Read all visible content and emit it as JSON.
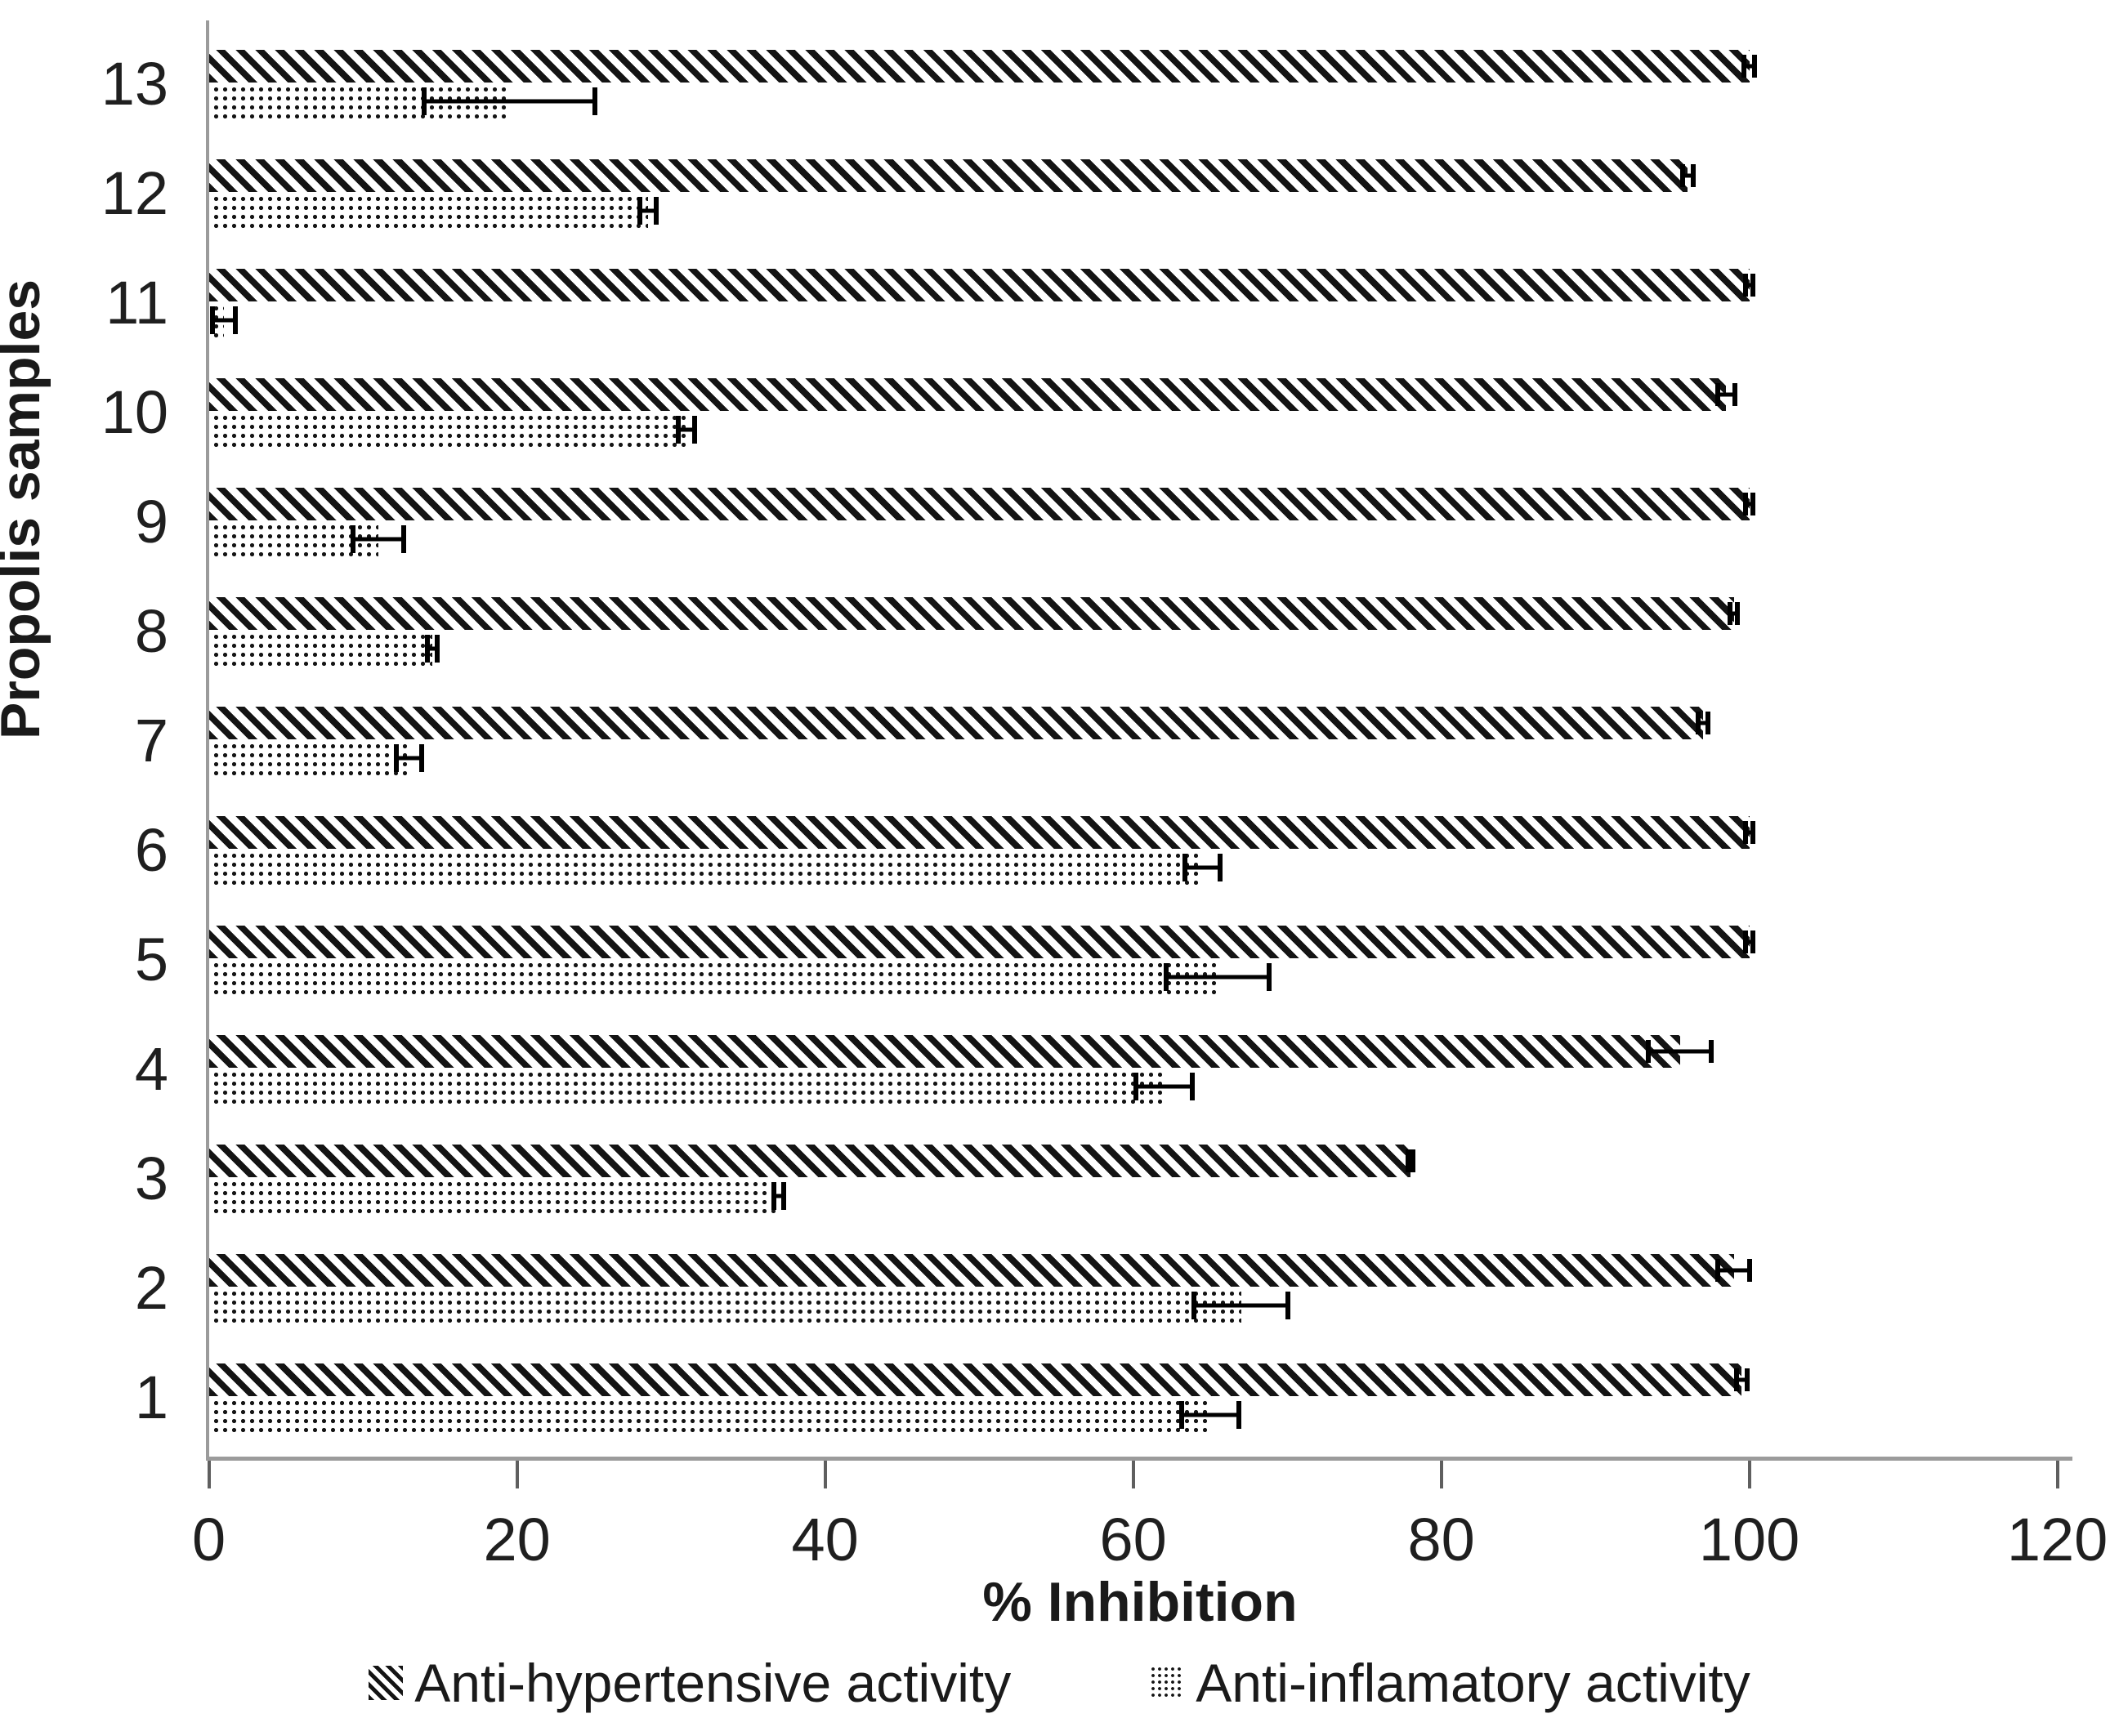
{
  "chart_data": {
    "type": "bar",
    "orientation": "horizontal",
    "title": "",
    "xlabel": "% Inhibition",
    "ylabel": "Propolis samples",
    "xlim": [
      0,
      120
    ],
    "x_ticks": [
      0,
      20,
      40,
      60,
      80,
      100,
      120
    ],
    "grid": false,
    "legend_position": "bottom-center",
    "bar_color": "#141414",
    "axis_color": "#9b9b9b",
    "series": [
      {
        "name": "Anti-hypertensive activity",
        "pattern": "diagonal-hatch"
      },
      {
        "name": "Anti-inflamatory activity",
        "pattern": "dots"
      }
    ],
    "rows": [
      {
        "sample": "13",
        "anti_hypertensive": {
          "value": 100,
          "error": 0.5
        },
        "anti_inflamatory": {
          "value": 19.5,
          "error": 5.7
        }
      },
      {
        "sample": "12",
        "anti_hypertensive": {
          "value": 96,
          "error": 0.5
        },
        "anti_inflamatory": {
          "value": 28.5,
          "error": 0.7
        }
      },
      {
        "sample": "11",
        "anti_hypertensive": {
          "value": 100,
          "error": 0.4
        },
        "anti_inflamatory": {
          "value": 1,
          "error": 0.9
        }
      },
      {
        "sample": "10",
        "anti_hypertensive": {
          "value": 98.5,
          "error": 0.7
        },
        "anti_inflamatory": {
          "value": 31,
          "error": 0.7
        }
      },
      {
        "sample": "9",
        "anti_hypertensive": {
          "value": 100,
          "error": 0.4
        },
        "anti_inflamatory": {
          "value": 11,
          "error": 1.8
        }
      },
      {
        "sample": "8",
        "anti_hypertensive": {
          "value": 99,
          "error": 0.4
        },
        "anti_inflamatory": {
          "value": 14.5,
          "error": 0.5
        }
      },
      {
        "sample": "7",
        "anti_hypertensive": {
          "value": 97,
          "error": 0.5
        },
        "anti_inflamatory": {
          "value": 13,
          "error": 1
        }
      },
      {
        "sample": "6",
        "anti_hypertensive": {
          "value": 100,
          "error": 0.4
        },
        "anti_inflamatory": {
          "value": 64.5,
          "error": 1.3
        }
      },
      {
        "sample": "5",
        "anti_hypertensive": {
          "value": 100,
          "error": 0.4
        },
        "anti_inflamatory": {
          "value": 65.5,
          "error": 3.5
        }
      },
      {
        "sample": "4",
        "anti_hypertensive": {
          "value": 95.5,
          "error": 2.2
        },
        "anti_inflamatory": {
          "value": 62,
          "error": 2
        }
      },
      {
        "sample": "3",
        "anti_hypertensive": {
          "value": 78,
          "error": 0.3
        },
        "anti_inflamatory": {
          "value": 37,
          "error": 0.5
        }
      },
      {
        "sample": "2",
        "anti_hypertensive": {
          "value": 99,
          "error": 1.2
        },
        "anti_inflamatory": {
          "value": 67,
          "error": 3.2
        }
      },
      {
        "sample": "1",
        "anti_hypertensive": {
          "value": 99.5,
          "error": 0.5
        },
        "anti_inflamatory": {
          "value": 65,
          "error": 2
        }
      }
    ]
  }
}
